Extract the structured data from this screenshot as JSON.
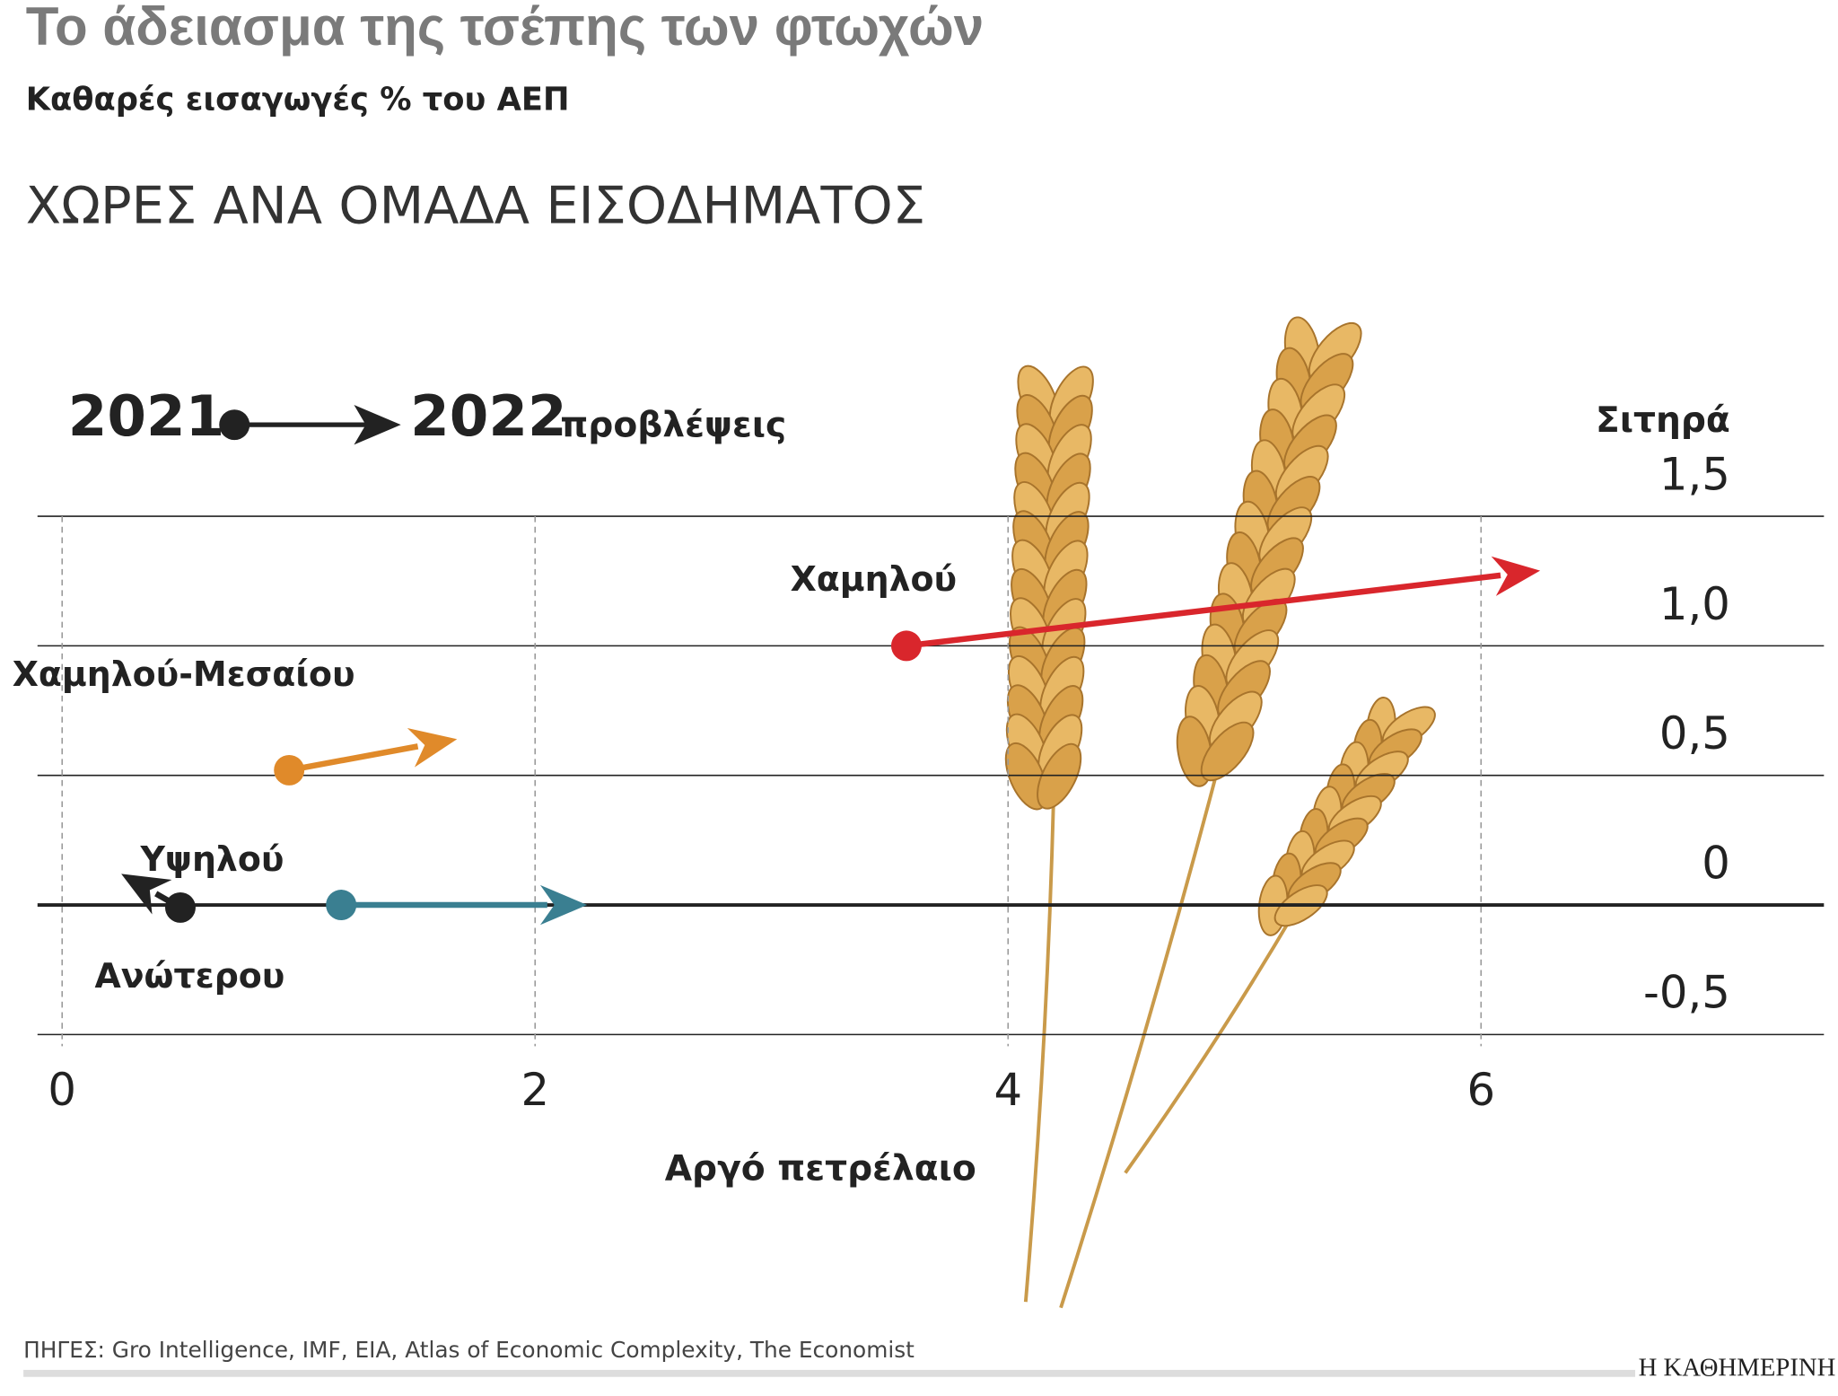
{
  "chart_data": {
    "type": "arrow",
    "title": "Το άδειασμα της τσέπης των φτωχών",
    "subtitle": "Καθαρές εισαγωγές % του ΑΕΠ",
    "section_title": "ΧΩΡΕΣ ΑΝΑ ΟΜΑΔΑ ΕΙΣΟΔΗΜΑΤΟΣ",
    "legend": {
      "start": "2021",
      "end": "2022",
      "end_note": "προβλέψεις"
    },
    "x_label": "Αργό πετρέλαιο",
    "y_label": "Σιτηρά",
    "xlim": [
      0,
      7.45
    ],
    "ylim": [
      -0.5,
      1.5
    ],
    "xticks": [
      0,
      2,
      4,
      6
    ],
    "yticks": [
      {
        "value": -0.5,
        "label": "-0,5"
      },
      0,
      {
        "value": 0.5,
        "label": "0,5"
      },
      {
        "value": 1,
        "label": "1,0"
      },
      {
        "value": 1.5,
        "label": "1,5"
      }
    ],
    "grid": true,
    "series": [
      {
        "name": "Χαμηλού",
        "color": "#d9262c",
        "x": [
          3.57,
          6.25
        ],
        "values": [
          1.0,
          1.29
        ]
      },
      {
        "name": "Χαμηλού-Μεσαίου",
        "color": "#e08a2a",
        "x": [
          0.96,
          1.67
        ],
        "values": [
          0.52,
          0.64
        ]
      },
      {
        "name": "Υψηλού",
        "color": "#3a7f91",
        "x": [
          1.18,
          2.22
        ],
        "values": [
          0,
          0
        ]
      },
      {
        "name": "Ανώτερου",
        "color": "#222222",
        "x": [
          0.5,
          0.25
        ],
        "values": [
          -0.01,
          0.12
        ]
      }
    ],
    "source": "ΠΗΓΕΣ: Gro Intelligence, IMF, EIA, Atlas of Economic Complexity, The Economist",
    "publisher": "Η ΚΑΘΗΜΕΡΙΝΗ"
  }
}
